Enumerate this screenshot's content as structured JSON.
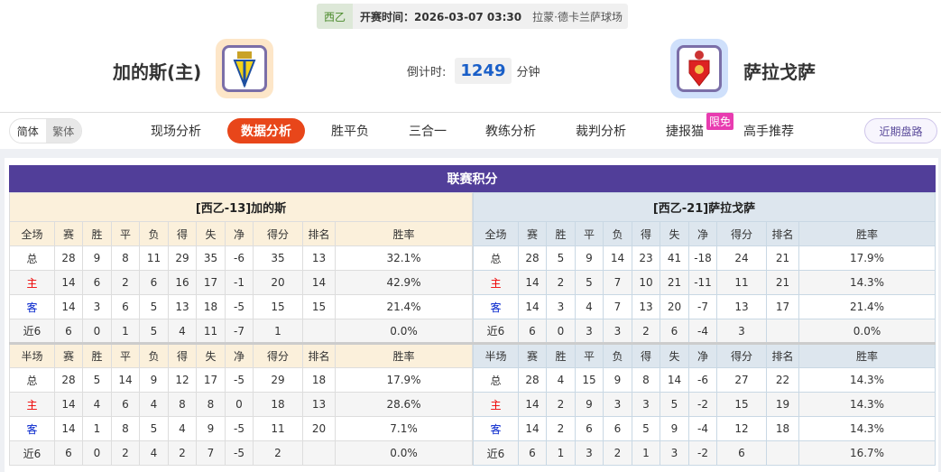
{
  "match": {
    "league": "西乙",
    "kickoff_label": "开赛时间：2026-03-07 03:30",
    "venue": "拉蒙·德卡兰萨球场"
  },
  "home": {
    "name": "加的斯(主)",
    "logo": "cadiz-crest"
  },
  "away": {
    "name": "萨拉戈萨",
    "logo": "zaragoza-crest"
  },
  "countdown": {
    "label": "倒计时:",
    "value": "1249",
    "unit": "分钟"
  },
  "lang": {
    "simplified": "简体",
    "traditional": "繁体"
  },
  "nav": [
    "现场分析",
    "数据分析",
    "胜平负",
    "三合一",
    "教练分析",
    "裁判分析",
    "捷报猫",
    "高手推荐"
  ],
  "nav_active": "数据分析",
  "badge": "限免",
  "recent_button": "近期盘路",
  "section_title": "联赛积分",
  "colors": {
    "accent": "#e8461a",
    "header": "#513e99",
    "home_red": "#ee0000",
    "away_blue": "#0022cc"
  },
  "tables": [
    {
      "title": "[西乙-13]加的斯",
      "full_header": [
        "全场",
        "赛",
        "胜",
        "平",
        "负",
        "得",
        "失",
        "净",
        "得分",
        "排名",
        "胜率"
      ],
      "full_rows": [
        [
          "总",
          "28",
          "9",
          "8",
          "11",
          "29",
          "35",
          "-6",
          "35",
          "13",
          "32.1%"
        ],
        [
          "主",
          "14",
          "6",
          "2",
          "6",
          "16",
          "17",
          "-1",
          "20",
          "14",
          "42.9%"
        ],
        [
          "客",
          "14",
          "3",
          "6",
          "5",
          "13",
          "18",
          "-5",
          "15",
          "15",
          "21.4%"
        ],
        [
          "近6",
          "6",
          "0",
          "1",
          "5",
          "4",
          "11",
          "-7",
          "1",
          "",
          "0.0%"
        ]
      ],
      "half_header": [
        "半场",
        "赛",
        "胜",
        "平",
        "负",
        "得",
        "失",
        "净",
        "得分",
        "排名",
        "胜率"
      ],
      "half_rows": [
        [
          "总",
          "28",
          "5",
          "14",
          "9",
          "12",
          "17",
          "-5",
          "29",
          "18",
          "17.9%"
        ],
        [
          "主",
          "14",
          "4",
          "6",
          "4",
          "8",
          "8",
          "0",
          "18",
          "13",
          "28.6%"
        ],
        [
          "客",
          "14",
          "1",
          "8",
          "5",
          "4",
          "9",
          "-5",
          "11",
          "20",
          "7.1%"
        ],
        [
          "近6",
          "6",
          "0",
          "2",
          "4",
          "2",
          "7",
          "-5",
          "2",
          "",
          "0.0%"
        ]
      ]
    },
    {
      "title": "[西乙-21]萨拉戈萨",
      "full_header": [
        "全场",
        "赛",
        "胜",
        "平",
        "负",
        "得",
        "失",
        "净",
        "得分",
        "排名",
        "胜率"
      ],
      "full_rows": [
        [
          "总",
          "28",
          "5",
          "9",
          "14",
          "23",
          "41",
          "-18",
          "24",
          "21",
          "17.9%"
        ],
        [
          "主",
          "14",
          "2",
          "5",
          "7",
          "10",
          "21",
          "-11",
          "11",
          "21",
          "14.3%"
        ],
        [
          "客",
          "14",
          "3",
          "4",
          "7",
          "13",
          "20",
          "-7",
          "13",
          "17",
          "21.4%"
        ],
        [
          "近6",
          "6",
          "0",
          "3",
          "3",
          "2",
          "6",
          "-4",
          "3",
          "",
          "0.0%"
        ]
      ],
      "half_header": [
        "半场",
        "赛",
        "胜",
        "平",
        "负",
        "得",
        "失",
        "净",
        "得分",
        "排名",
        "胜率"
      ],
      "half_rows": [
        [
          "总",
          "28",
          "4",
          "15",
          "9",
          "8",
          "14",
          "-6",
          "27",
          "22",
          "14.3%"
        ],
        [
          "主",
          "14",
          "2",
          "9",
          "3",
          "3",
          "5",
          "-2",
          "15",
          "19",
          "14.3%"
        ],
        [
          "客",
          "14",
          "2",
          "6",
          "6",
          "5",
          "9",
          "-4",
          "12",
          "18",
          "14.3%"
        ],
        [
          "近6",
          "6",
          "1",
          "3",
          "2",
          "1",
          "3",
          "-2",
          "6",
          "",
          "16.7%"
        ]
      ]
    }
  ]
}
